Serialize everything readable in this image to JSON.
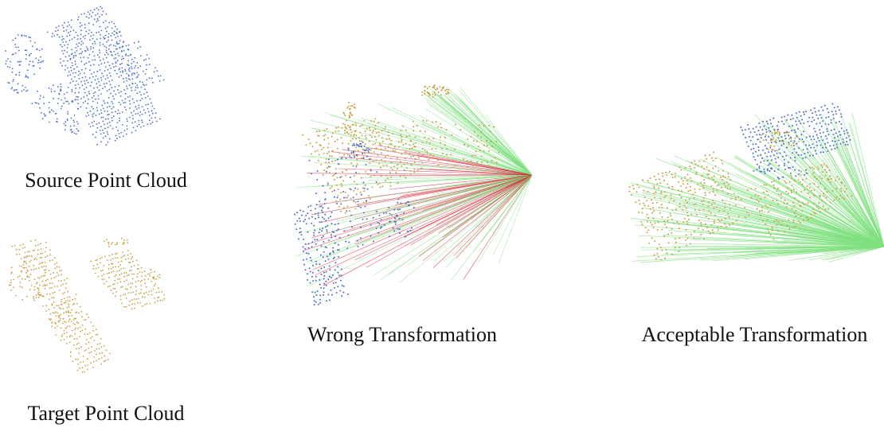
{
  "figure": {
    "panels": [
      {
        "id": "source",
        "caption": "Source Point Cloud"
      },
      {
        "id": "target",
        "caption": "Target Point Cloud"
      },
      {
        "id": "wrong",
        "caption": "Wrong Transformation"
      },
      {
        "id": "accept",
        "caption": "Acceptable Transformation"
      }
    ]
  },
  "colors": {
    "source_points": "#4a6fc9",
    "target_points": "#c9a046",
    "inlier_lines": "#7fe07f",
    "outlier_lines": "#e0203c",
    "caption_text": "#111111"
  }
}
